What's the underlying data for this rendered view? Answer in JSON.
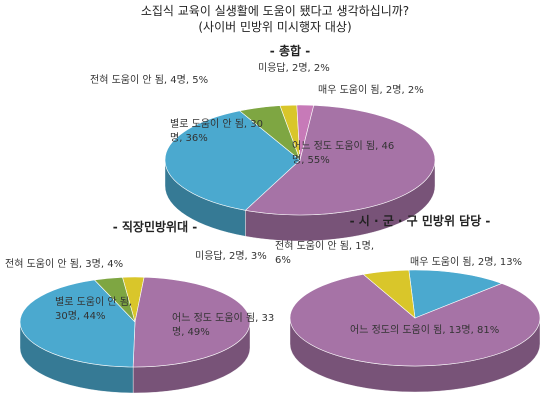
{
  "title": "소집식 교육이 실생활에 도움이 됐다고 생각하십니까?",
  "subtitle": "(사이버 민방위 미시행자 대상)",
  "chart_data": [
    {
      "type": "pie",
      "title": "- 총합 -",
      "values": [
        2,
        2,
        55,
        36,
        5
      ],
      "value_labels": [
        "미응답, 2명, 2%",
        "매우 도움이 됨, 2명, 2%",
        "어느 정도 도움이 됨, 46명, 55%",
        "별로 도움이 안 됨, 30명, 36%",
        "전혀 도움이 안 됨, 4명, 5%"
      ],
      "colors": [
        "#d9c62a",
        "#c77ab8",
        "#a673a6",
        "#4ba9cf",
        "#7ea642"
      ]
    },
    {
      "type": "pie",
      "title": "- 직장민방위대 -",
      "values": [
        3,
        49,
        44,
        4
      ],
      "value_labels": [
        "미응답, 2명, 3%",
        "어느 정도 도움이 됨, 33명, 49%",
        "별로 도움이 안 됨, 30명, 44%",
        "전혀 도움이 안 됨, 3명, 4%"
      ],
      "colors": [
        "#d9c62a",
        "#a673a6",
        "#4ba9cf",
        "#7ea642"
      ]
    },
    {
      "type": "pie",
      "title": "- 시 · 군 · 구 민방위 담당 -",
      "values": [
        13,
        81,
        6
      ],
      "value_labels": [
        "매우 도움이 됨, 2명, 13%",
        "어느 정도의 도움이 됨, 13명, 81%",
        "전혀 도움이 안 됨, 1명, 6%"
      ],
      "colors": [
        "#4ba9cf",
        "#a673a6",
        "#d9c62a"
      ]
    }
  ]
}
